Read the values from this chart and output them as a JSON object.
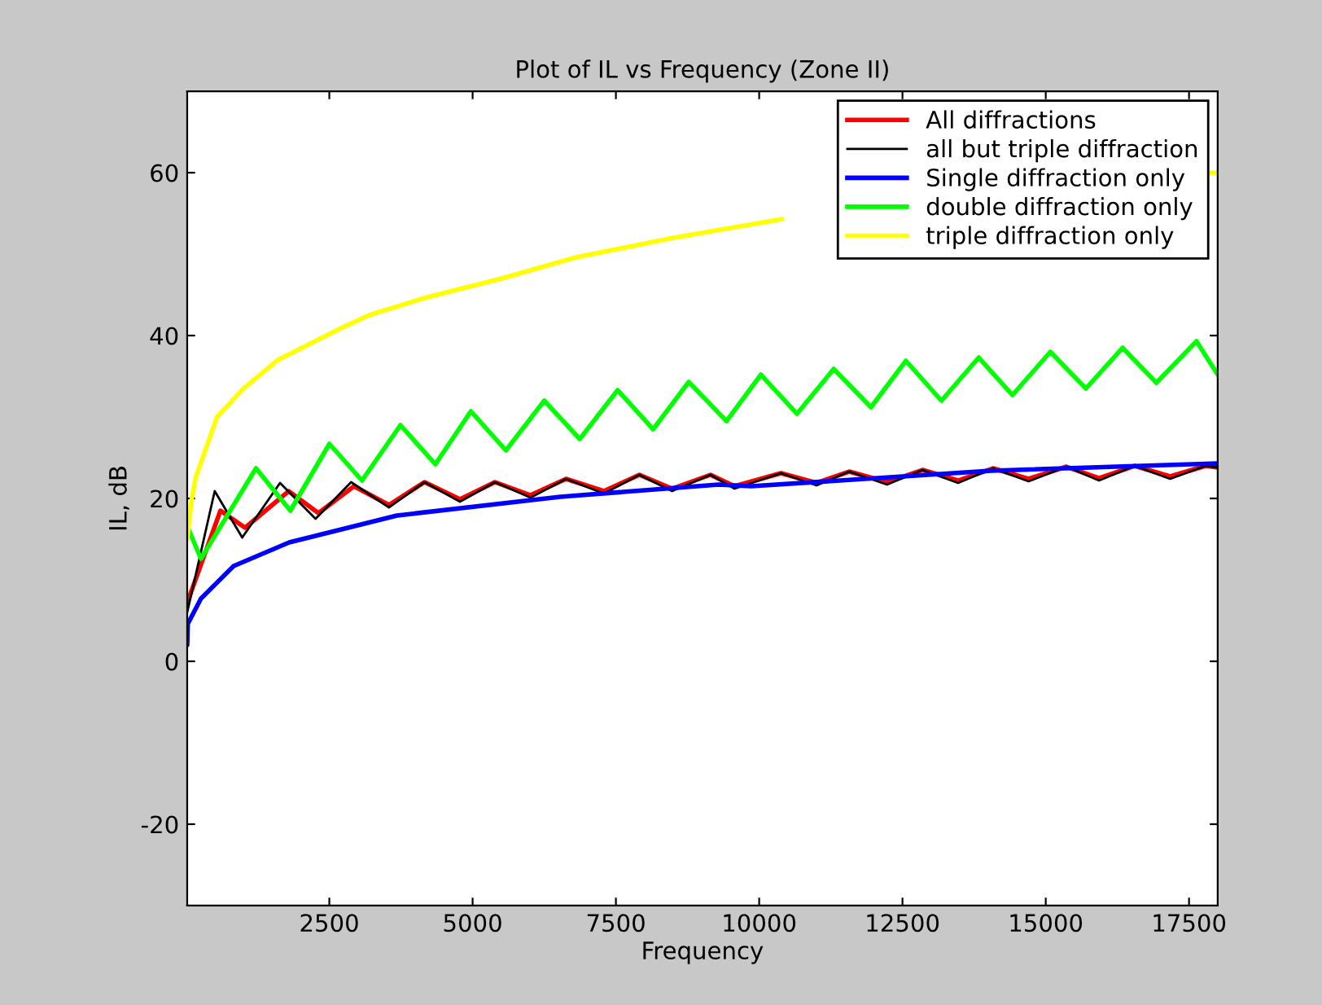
{
  "chart_data": {
    "type": "line",
    "title": "Plot of IL vs Frequency (Zone II)",
    "xlabel": "Frequency",
    "ylabel": "IL, dB",
    "xlim": [
      20,
      18000
    ],
    "ylim": [
      -30,
      70
    ],
    "xticks": [
      2500,
      5000,
      7500,
      10000,
      12500,
      15000,
      17500
    ],
    "yticks": [
      -20,
      0,
      20,
      40,
      60
    ],
    "grid": false,
    "legend": "top right",
    "series": [
      {
        "name": "All diffractions",
        "color": "#ff0000",
        "x": [
          20,
          600,
          1030,
          1790,
          2310,
          2930,
          3540,
          4160,
          4780,
          5390,
          6010,
          6630,
          7290,
          7910,
          8480,
          9150,
          9570,
          10380,
          11000,
          11570,
          12230,
          12850,
          13470,
          14080,
          14700,
          15360,
          15930,
          16550,
          17170,
          17790,
          18000
        ],
        "values": [
          7.2,
          18.5,
          16.4,
          20.9,
          18.2,
          21.5,
          19.2,
          22,
          19.9,
          22,
          20.4,
          22.4,
          20.9,
          22.9,
          21.2,
          22.9,
          21.5,
          23.1,
          21.9,
          23.3,
          22,
          23.5,
          22.2,
          23.7,
          22.4,
          23.9,
          22.5,
          24,
          22.7,
          24,
          23.8
        ]
      },
      {
        "name": "all but triple diffraction",
        "color": "#000000",
        "x": [
          20,
          500,
          980,
          1640,
          2260,
          2880,
          3540,
          4160,
          4780,
          5390,
          6010,
          6630,
          7290,
          7910,
          8480,
          9150,
          9570,
          10380,
          11000,
          11570,
          12230,
          12850,
          13470,
          14080,
          14700,
          15360,
          15930,
          16550,
          17170,
          17790,
          18000
        ],
        "values": [
          6,
          20.9,
          15.2,
          21.9,
          17.5,
          22,
          18.9,
          22,
          19.6,
          22,
          20.1,
          22.4,
          20.6,
          22.9,
          20.9,
          22.9,
          21.2,
          23.1,
          21.6,
          23.3,
          21.7,
          23.5,
          21.9,
          23.7,
          22.1,
          23.9,
          22.2,
          24,
          22.4,
          24,
          23.8
        ]
      },
      {
        "name": "Single diffraction only",
        "color": "#0000ff",
        "x": [
          20,
          30,
          260,
          830,
          1800,
          3680,
          6530,
          9290,
          9860,
          14040,
          18000
        ],
        "values": [
          2,
          4.6,
          7.7,
          11.7,
          14.6,
          17.9,
          20.2,
          21.7,
          21.5,
          23.4,
          24.3
        ]
      },
      {
        "name": "double diffraction only",
        "color": "#00ff00",
        "x": [
          20,
          260,
          1220,
          1820,
          2500,
          3070,
          3740,
          4350,
          4970,
          5580,
          6250,
          6870,
          7530,
          8150,
          8770,
          9430,
          10030,
          10660,
          11300,
          11950,
          12560,
          13180,
          13830,
          14420,
          15080,
          15700,
          16340,
          16930,
          17630,
          18000
        ],
        "values": [
          16.6,
          12.6,
          23.7,
          18.5,
          26.7,
          22.2,
          29,
          24.2,
          30.7,
          25.9,
          32,
          27.3,
          33.3,
          28.5,
          34.3,
          29.5,
          35.2,
          30.4,
          35.9,
          31.2,
          36.9,
          32,
          37.3,
          32.7,
          38,
          33.5,
          38.5,
          34.2,
          39.3,
          35.2
        ]
      },
      {
        "name": "triple diffraction only",
        "color": "#ffff00",
        "x": [
          20,
          100,
          170,
          540,
          1000,
          1600,
          2730,
          3190,
          4150,
          5500,
          6800,
          8500,
          10400,
          10500,
          17850,
          18000
        ],
        "values": [
          15,
          20,
          22.6,
          30,
          33.5,
          37,
          41,
          42.5,
          44.6,
          47,
          49.6,
          52,
          54.3,
          null,
          60,
          60
        ]
      }
    ]
  }
}
